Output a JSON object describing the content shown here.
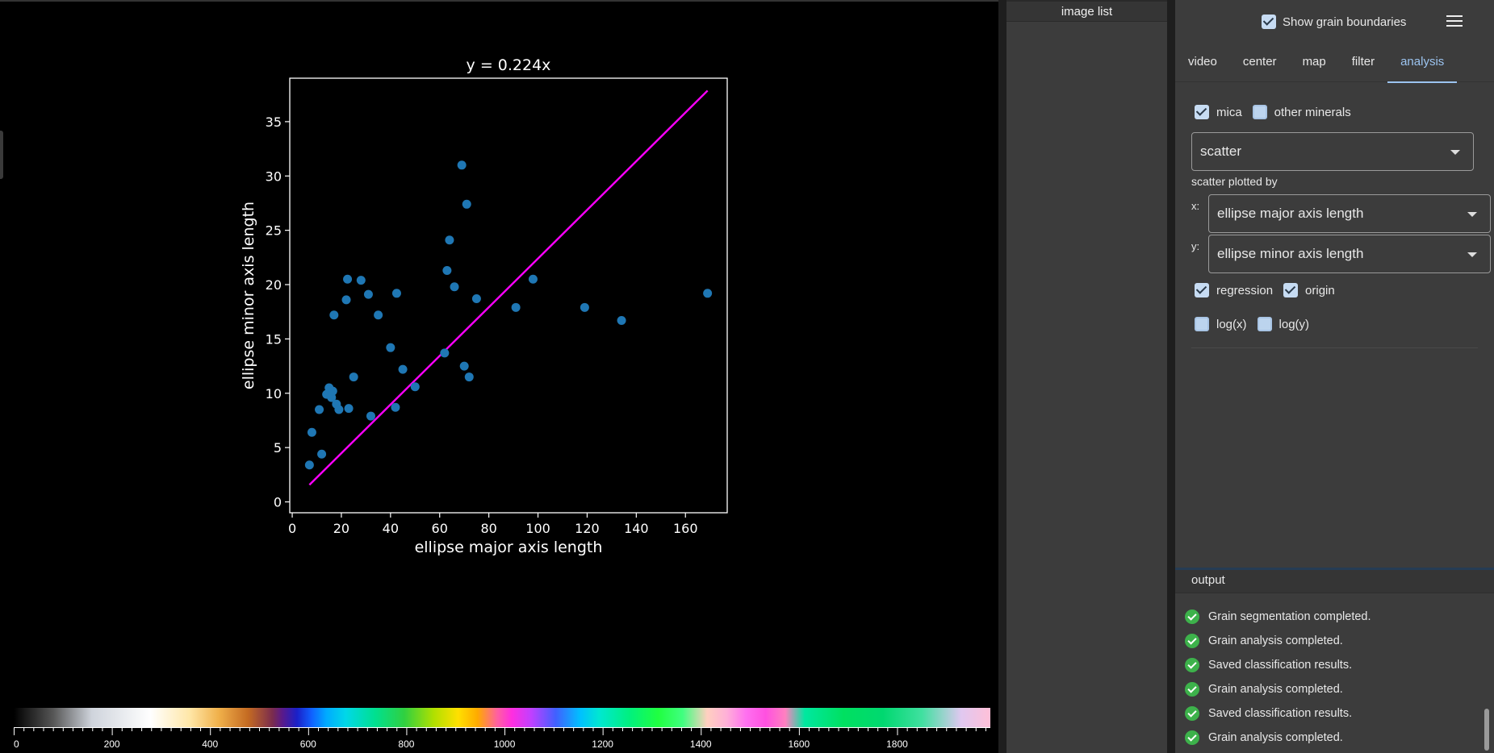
{
  "image_list": {
    "title": "image list"
  },
  "topbar": {
    "show_grain_boundaries_label": "Show grain boundaries",
    "show_grain_boundaries_checked": true,
    "menu_icon": "hamburger-menu-icon"
  },
  "tabs": [
    {
      "label": "video",
      "active": false
    },
    {
      "label": "center",
      "active": false
    },
    {
      "label": "map",
      "active": false
    },
    {
      "label": "filter",
      "active": false
    },
    {
      "label": "analysis",
      "active": true
    }
  ],
  "analysis": {
    "mica_label": "mica",
    "mica_checked": true,
    "other_minerals_label": "other minerals",
    "other_minerals_checked": false,
    "plot_type_value": "scatter",
    "scatter_by_label": "scatter plotted by",
    "x_label": "x:",
    "x_value": "ellipse major axis length",
    "y_label": "y:",
    "y_value": "ellipse minor axis length",
    "regression_label": "regression",
    "regression_checked": true,
    "origin_label": "origin",
    "origin_checked": true,
    "logx_label": "log(x)",
    "logx_checked": false,
    "logy_label": "log(y)",
    "logy_checked": false
  },
  "output": {
    "title": "output",
    "messages": [
      "Grain segmentation completed.",
      "Grain analysis completed.",
      "Saved classification results.",
      "Grain analysis completed.",
      "Saved classification results.",
      "Grain analysis completed."
    ]
  },
  "colorbar": {
    "ticks": [
      "0",
      "200",
      "400",
      "600",
      "800",
      "1000",
      "1200",
      "1400",
      "1600",
      "1800"
    ],
    "range": [
      0,
      1990
    ]
  },
  "chart_data": {
    "type": "scatter",
    "title": "y = 0.224x",
    "xlabel": "ellipse major axis length",
    "ylabel": "ellipse minor axis length",
    "xlim": [
      -1,
      177
    ],
    "ylim": [
      -1,
      39
    ],
    "xticks": [
      0,
      20,
      40,
      60,
      80,
      100,
      120,
      140,
      160
    ],
    "yticks": [
      0,
      5,
      10,
      15,
      20,
      25,
      30,
      35
    ],
    "grid": false,
    "point_color": "#1f77b4",
    "line_color": "#ff00ff",
    "x": [
      7,
      8,
      11,
      12,
      14,
      15,
      16,
      16.5,
      17,
      18,
      19,
      22,
      22.5,
      23,
      25,
      28,
      31,
      32,
      35,
      40,
      42,
      42.5,
      45,
      50,
      62,
      63,
      64,
      66,
      69,
      70,
      71,
      72,
      75,
      91,
      98,
      119,
      134,
      169
    ],
    "y": [
      3.4,
      6.4,
      8.5,
      4.4,
      9.9,
      10.5,
      9.6,
      10.2,
      17.2,
      9.0,
      8.5,
      18.6,
      20.5,
      8.6,
      11.5,
      20.4,
      19.1,
      7.9,
      17.2,
      14.2,
      8.7,
      19.2,
      12.2,
      10.6,
      13.7,
      21.3,
      24.1,
      19.8,
      31.0,
      12.5,
      27.4,
      11.5,
      18.7,
      17.9,
      20.5,
      17.9,
      16.7,
      19.2
    ],
    "regression": {
      "slope": 0.224,
      "x_range": [
        7,
        169
      ]
    }
  }
}
